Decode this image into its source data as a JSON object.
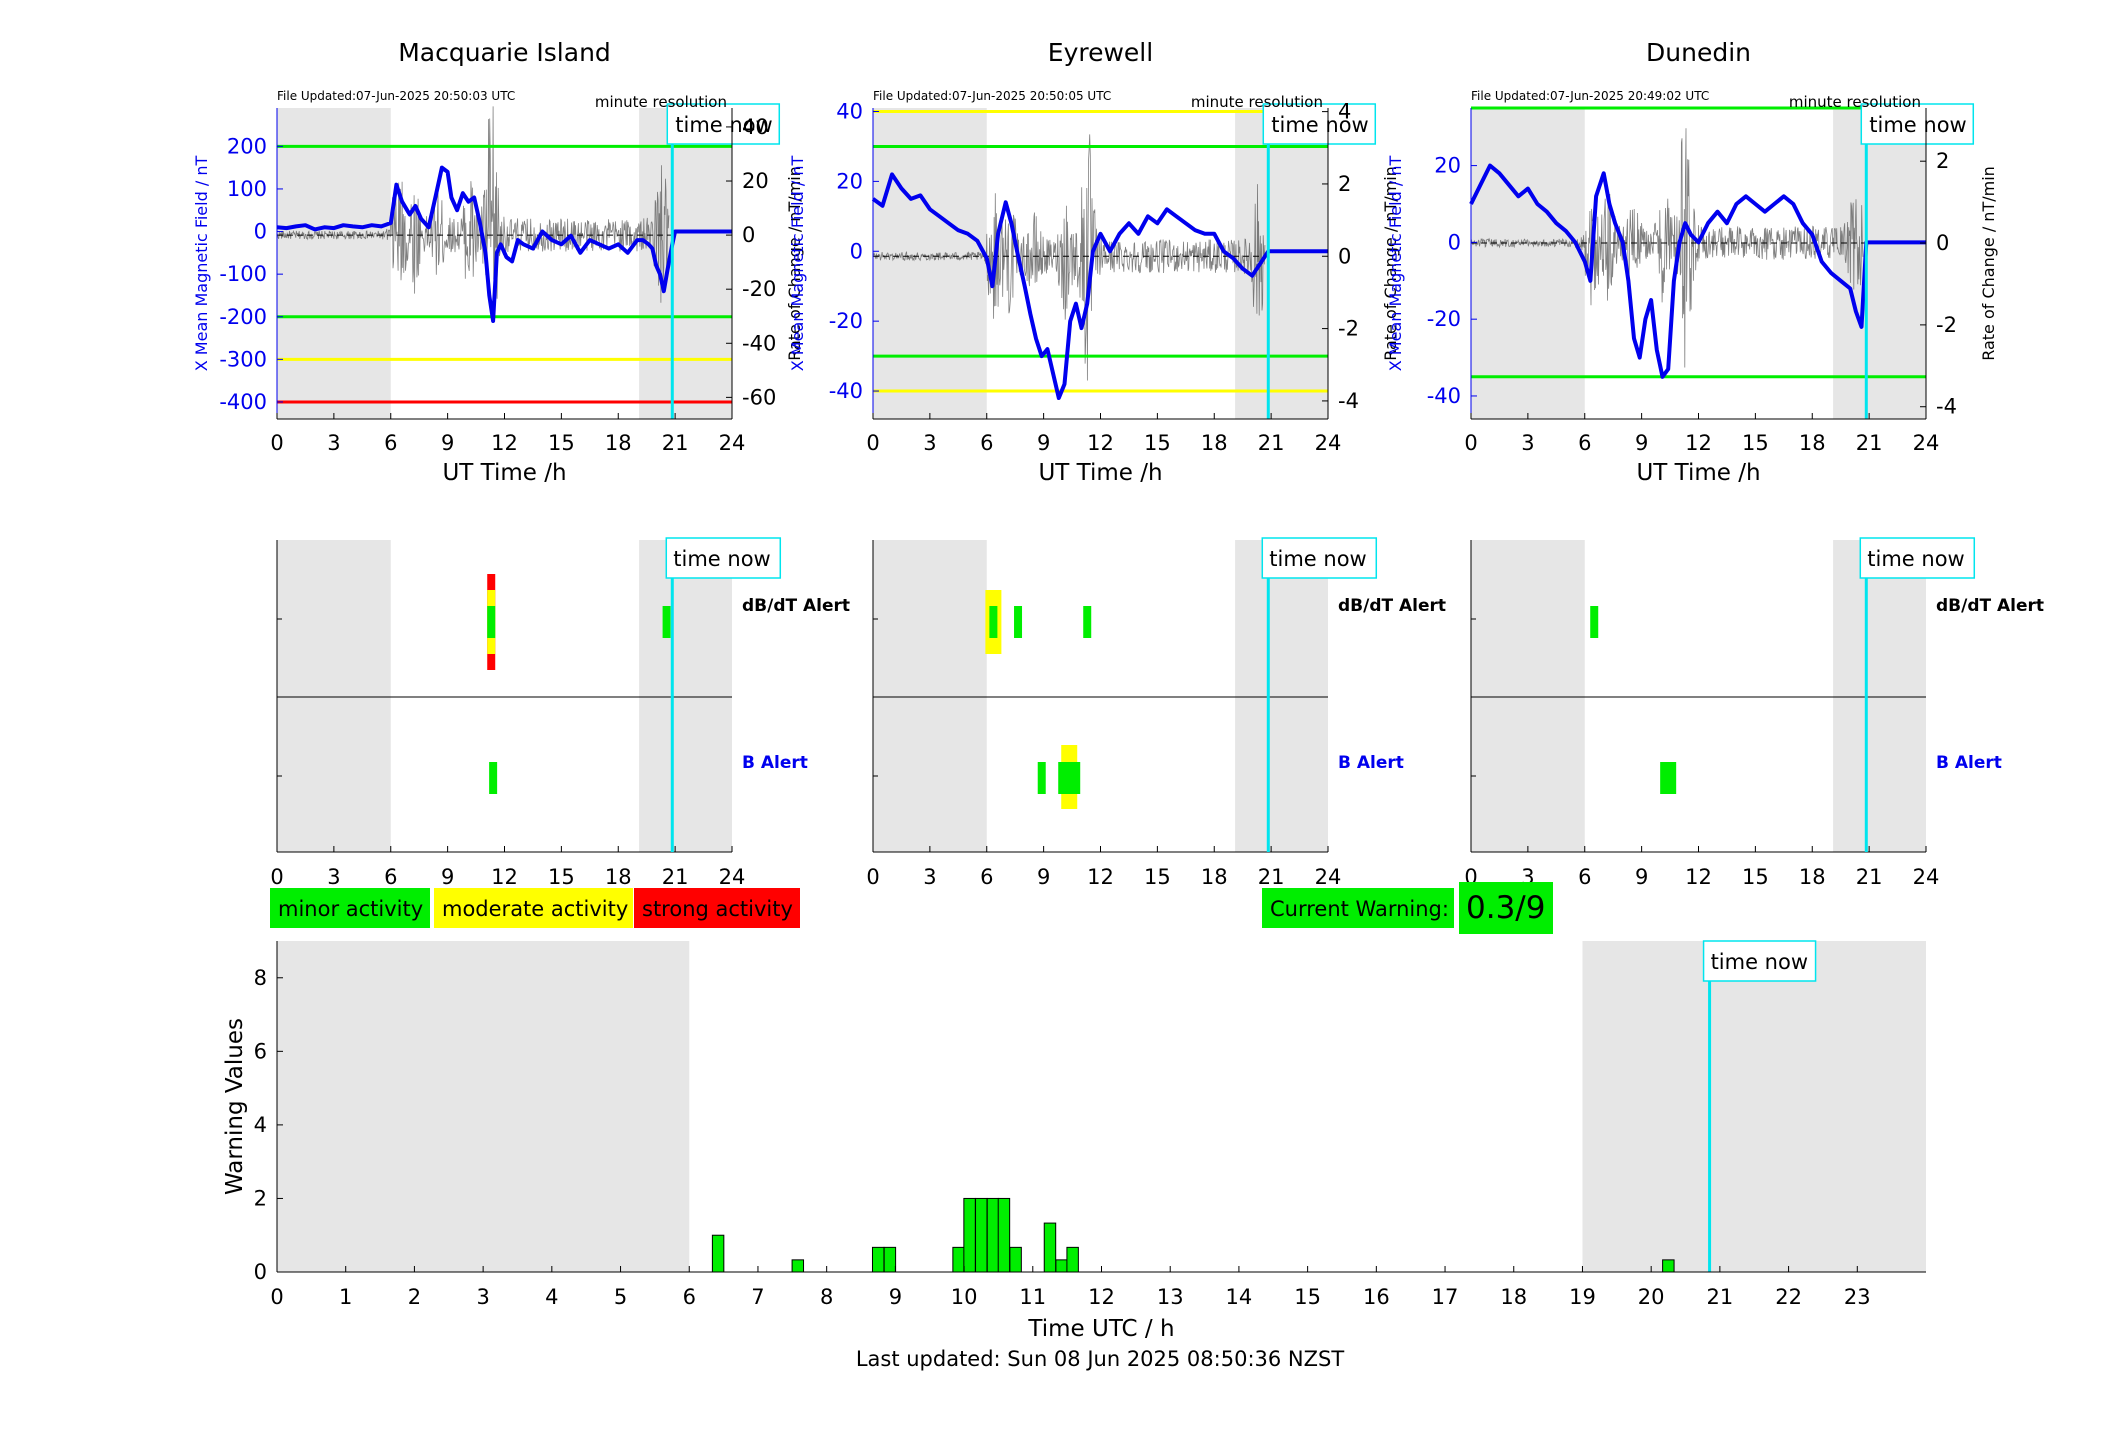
{
  "colors": {
    "shade": "#e6e6e6",
    "blue": "#0000ee",
    "green": "#00ee00",
    "yellow": "#ffff00",
    "red": "#ff0000",
    "cyan": "#00e5ee",
    "grey_trace": "#555555"
  },
  "legend": {
    "minor": "minor activity",
    "moderate": "moderate activity",
    "strong": "strong activity"
  },
  "current_warning": {
    "label": "Current Warning:",
    "value": "0.3/9"
  },
  "footer": {
    "last_updated": "Last updated: Sun 08 Jun 2025 08:50:36 NZST"
  },
  "labels": {
    "time_now": "time now",
    "minute_resolution": "minute resolution",
    "ut_time": "UT Time /h",
    "left_ylabel": "X Mean Magnetic Field / nT",
    "right_ylabel": "Rate of Change / nT/min",
    "dbdt_alert": "dB/dT Alert",
    "b_alert": "B Alert"
  },
  "chart_data": [
    {
      "type": "line",
      "title": "Macquarie Island",
      "file_updated": "File Updated:07-Jun-2025 20:50:03 UTC",
      "xlabel": "UT Time /h",
      "ylabel": "X Mean Magnetic Field / nT",
      "y2label": "Rate of Change / nT/min",
      "xlim": [
        0,
        24
      ],
      "ylim": [
        -440,
        290
      ],
      "y2lim": [
        -68,
        47
      ],
      "xticks": [
        0,
        3,
        6,
        9,
        12,
        15,
        18,
        21,
        24
      ],
      "yticks": [
        200,
        100,
        0,
        -100,
        -200,
        -300,
        -400
      ],
      "y2ticks": [
        40,
        20,
        0,
        -20,
        -40,
        -60
      ],
      "shaded_ranges": [
        [
          0,
          6
        ],
        [
          19.1,
          24
        ]
      ],
      "time_now": 20.85,
      "threshold_lines": [
        {
          "value": 200,
          "color": "green"
        },
        {
          "value": -200,
          "color": "green"
        },
        {
          "value": -300,
          "color": "yellow"
        },
        {
          "value": -400,
          "color": "red"
        }
      ],
      "series": [
        {
          "x": [
            0,
            0.5,
            1,
            1.5,
            2,
            2.5,
            3,
            3.5,
            4,
            4.5,
            5,
            5.5,
            6,
            6.3,
            6.6,
            7,
            7.3,
            7.6,
            8,
            8.4,
            8.7,
            9,
            9.2,
            9.5,
            9.8,
            10.1,
            10.4,
            10.7,
            11,
            11.2,
            11.4,
            11.6,
            11.8,
            12.1,
            12.4,
            12.7,
            13,
            13.5,
            14,
            14.5,
            15,
            15.5,
            16,
            16.5,
            17,
            17.5,
            18,
            18.5,
            19,
            19.3,
            19.6,
            19.8,
            20,
            20.2,
            20.4,
            20.6,
            20.85,
            21,
            22,
            23,
            24
          ],
          "y": [
            10,
            8,
            12,
            15,
            5,
            10,
            8,
            15,
            12,
            10,
            15,
            12,
            20,
            110,
            70,
            40,
            60,
            30,
            10,
            90,
            150,
            140,
            80,
            50,
            90,
            70,
            80,
            20,
            -50,
            -150,
            -210,
            -50,
            -30,
            -60,
            -70,
            -20,
            -30,
            -40,
            0,
            -20,
            -30,
            -10,
            -50,
            -20,
            -30,
            -40,
            -30,
            -50,
            -20,
            -20,
            -30,
            -40,
            -80,
            -100,
            -140,
            -90,
            -30,
            0,
            0,
            0,
            0
          ]
        }
      ]
    },
    {
      "type": "line",
      "title": "Eyrewell",
      "file_updated": "File Updated:07-Jun-2025 20:50:05 UTC",
      "xlabel": "UT Time /h",
      "ylabel": "X Mean Magnetic Field / nT",
      "y2label": "Rate of Change / nT/min",
      "xlim": [
        0,
        24
      ],
      "ylim": [
        -48,
        41
      ],
      "y2lim": [
        -4.5,
        4.1
      ],
      "xticks": [
        0,
        3,
        6,
        9,
        12,
        15,
        18,
        21,
        24
      ],
      "yticks": [
        40,
        20,
        0,
        -20,
        -40
      ],
      "y2ticks": [
        4,
        2,
        0,
        -2,
        -4
      ],
      "shaded_ranges": [
        [
          0,
          6
        ],
        [
          19.1,
          24
        ]
      ],
      "time_now": 20.85,
      "threshold_lines": [
        {
          "value": 40,
          "color": "yellow"
        },
        {
          "value": 30,
          "color": "green"
        },
        {
          "value": -30,
          "color": "green"
        },
        {
          "value": -40,
          "color": "yellow"
        }
      ],
      "series": [
        {
          "x": [
            0,
            0.5,
            1,
            1.5,
            2,
            2.5,
            3,
            3.5,
            4,
            4.5,
            5,
            5.5,
            6,
            6.3,
            6.6,
            7,
            7.3,
            7.6,
            8,
            8.3,
            8.6,
            8.9,
            9.2,
            9.5,
            9.8,
            10.1,
            10.4,
            10.7,
            11,
            11.3,
            11.6,
            12,
            12.5,
            13,
            13.5,
            14,
            14.5,
            15,
            15.5,
            16,
            16.5,
            17,
            17.5,
            18,
            18.5,
            19,
            19.5,
            20,
            20.85,
            21,
            22,
            23,
            24
          ],
          "y": [
            15,
            13,
            22,
            18,
            15,
            16,
            12,
            10,
            8,
            6,
            5,
            3,
            -2,
            -10,
            5,
            14,
            8,
            0,
            -10,
            -18,
            -25,
            -30,
            -28,
            -35,
            -42,
            -38,
            -20,
            -15,
            -22,
            -15,
            0,
            5,
            0,
            5,
            8,
            5,
            10,
            8,
            12,
            10,
            8,
            6,
            5,
            5,
            0,
            -2,
            -5,
            -7,
            0,
            0,
            0,
            0,
            0
          ]
        }
      ]
    },
    {
      "type": "line",
      "title": "Dunedin",
      "file_updated": "File Updated:07-Jun-2025 20:49:02 UTC",
      "xlabel": "UT Time /h",
      "ylabel": "X Mean Magnetic Field / nT",
      "y2label": "Rate of Change / nT/min",
      "xlim": [
        0,
        24
      ],
      "ylim": [
        -46,
        35
      ],
      "y2lim": [
        -4.3,
        3.3
      ],
      "xticks": [
        0,
        3,
        6,
        9,
        12,
        15,
        18,
        21,
        24
      ],
      "yticks": [
        20,
        0,
        -20,
        -40
      ],
      "y2ticks": [
        2,
        0,
        -2,
        -4
      ],
      "shaded_ranges": [
        [
          0,
          6
        ],
        [
          19.1,
          24
        ]
      ],
      "time_now": 20.85,
      "threshold_lines": [
        {
          "value": 35,
          "color": "green"
        },
        {
          "value": -35,
          "color": "green"
        }
      ],
      "series": [
        {
          "x": [
            0,
            0.5,
            1,
            1.5,
            2,
            2.5,
            3,
            3.5,
            4,
            4.5,
            5,
            5.5,
            6,
            6.3,
            6.6,
            7,
            7.3,
            7.6,
            8,
            8.3,
            8.6,
            8.9,
            9.2,
            9.5,
            9.8,
            10.1,
            10.4,
            10.7,
            11,
            11.3,
            11.6,
            12,
            12.5,
            13,
            13.5,
            14,
            14.5,
            15,
            15.5,
            16,
            16.5,
            17,
            17.5,
            18,
            18.5,
            19,
            19.5,
            20,
            20.3,
            20.6,
            20.85,
            21,
            22,
            23,
            24
          ],
          "y": [
            10,
            15,
            20,
            18,
            15,
            12,
            14,
            10,
            8,
            5,
            3,
            0,
            -5,
            -10,
            12,
            18,
            10,
            5,
            0,
            -10,
            -25,
            -30,
            -20,
            -15,
            -28,
            -35,
            -33,
            -10,
            0,
            5,
            2,
            0,
            5,
            8,
            5,
            10,
            12,
            10,
            8,
            10,
            12,
            10,
            5,
            2,
            -5,
            -8,
            -10,
            -12,
            -18,
            -22,
            0,
            0,
            0,
            0,
            0
          ]
        }
      ]
    },
    {
      "type": "bar",
      "title": "",
      "xlabel": "Time UTC / h",
      "ylabel": "Warning Values",
      "xlim": [
        0,
        24
      ],
      "ylim": [
        0,
        9
      ],
      "xticks": [
        0,
        1,
        2,
        3,
        4,
        5,
        6,
        7,
        8,
        9,
        10,
        11,
        12,
        13,
        14,
        15,
        16,
        17,
        18,
        19,
        20,
        21,
        22,
        23
      ],
      "yticks": [
        0,
        2,
        4,
        6,
        8
      ],
      "shaded_ranges": [
        [
          0,
          6
        ],
        [
          19,
          24
        ]
      ],
      "time_now": 20.85,
      "bar_width_h": 0.1667,
      "x": [
        6.42,
        7.58,
        8.75,
        8.92,
        9.92,
        10.08,
        10.25,
        10.42,
        10.58,
        10.75,
        11.25,
        11.42,
        11.58,
        20.25
      ],
      "values": [
        1.0,
        0.33,
        0.67,
        0.67,
        0.67,
        2.0,
        2.0,
        2.0,
        2.0,
        0.67,
        1.33,
        0.33,
        0.67,
        0.33
      ]
    }
  ],
  "alert_data": [
    {
      "station": "Macquarie Island",
      "dbdt_events": [
        {
          "t": 11.3,
          "level": 3
        },
        {
          "t": 20.55,
          "level": 1
        }
      ],
      "b_events": [
        {
          "t": 11.4,
          "level": 1
        }
      ]
    },
    {
      "station": "Eyrewell",
      "dbdt_events": [
        {
          "t": 6.35,
          "level": 2
        },
        {
          "t": 7.65,
          "level": 1
        },
        {
          "t": 11.3,
          "level": 1
        }
      ],
      "b_events": [
        {
          "t": 8.9,
          "level": 1
        },
        {
          "t": 10.35,
          "level": 2
        }
      ]
    },
    {
      "station": "Dunedin",
      "dbdt_events": [
        {
          "t": 6.5,
          "level": 1
        }
      ],
      "b_events": [
        {
          "t": 10.4,
          "level": 1
        }
      ]
    }
  ]
}
